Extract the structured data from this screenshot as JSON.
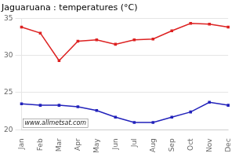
{
  "chart_data": {
    "type": "line",
    "title": "Jaguaruana : temperatures (°C)",
    "categories": [
      "Jan",
      "Feb",
      "Mar",
      "Apr",
      "May",
      "Jun",
      "Jul",
      "Aug",
      "Sep",
      "Oct",
      "Nov",
      "Dec"
    ],
    "series": [
      {
        "color": "#dd2222",
        "marker": "square",
        "values": [
          33.8,
          33.0,
          29.3,
          31.9,
          32.1,
          31.5,
          32.1,
          32.2,
          33.3,
          34.3,
          34.2,
          33.8
        ]
      },
      {
        "color": "#2222bb",
        "marker": "square",
        "values": [
          23.5,
          23.3,
          23.3,
          23.1,
          22.6,
          21.7,
          21.0,
          21.0,
          21.7,
          22.4,
          23.7,
          23.3
        ]
      }
    ],
    "ylim": [
      20,
      35
    ],
    "yticks": [
      20,
      25,
      30,
      35
    ],
    "grid": "y",
    "annotations": [
      "www.allmetsat.com"
    ]
  }
}
